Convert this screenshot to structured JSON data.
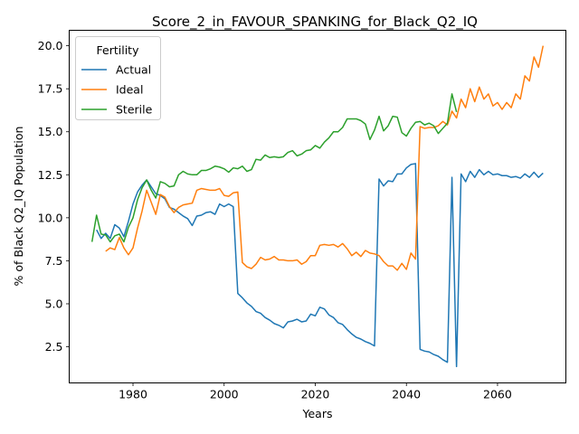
{
  "chart_data": {
    "type": "line",
    "title": "Score_2_in_FAVOUR_SPANKING_for_Black_Q2_IQ",
    "xlabel": "Years",
    "ylabel": "% of Black Q2_IQ Population",
    "xlim": [
      1966,
      2075
    ],
    "ylim": [
      0.4,
      20.9
    ],
    "xticks": [
      1980,
      2000,
      2020,
      2040,
      2060
    ],
    "yticks": [
      2.5,
      5.0,
      7.5,
      10.0,
      12.5,
      15.0,
      17.5,
      20.0
    ],
    "xtick_labels": [
      "1980",
      "2000",
      "2020",
      "2040",
      "2060"
    ],
    "ytick_labels": [
      "2.5",
      "5.0",
      "7.5",
      "10.0",
      "12.5",
      "15.0",
      "17.5",
      "20.0"
    ],
    "grid": false,
    "legend": {
      "title": "Fertility",
      "position": "upper-left"
    },
    "series": [
      {
        "name": "Actual",
        "color": "#1f77b4",
        "points": [
          [
            1972,
            9.3
          ],
          [
            1973,
            8.8
          ],
          [
            1974,
            9.1
          ],
          [
            1975,
            8.8
          ],
          [
            1976,
            9.6
          ],
          [
            1977,
            9.4
          ],
          [
            1978,
            8.9
          ],
          [
            1979,
            9.8
          ],
          [
            1980,
            10.8
          ],
          [
            1981,
            11.5
          ],
          [
            1982,
            11.9
          ],
          [
            1983,
            12.2
          ],
          [
            1984,
            11.8
          ],
          [
            1985,
            11.4
          ],
          [
            1986,
            11.3
          ],
          [
            1987,
            11.1
          ],
          [
            1988,
            10.6
          ],
          [
            1989,
            10.5
          ],
          [
            1990,
            10.3
          ],
          [
            1991,
            10.1
          ],
          [
            1992,
            9.95
          ],
          [
            1993,
            9.55
          ],
          [
            1994,
            10.1
          ],
          [
            1995,
            10.15
          ],
          [
            1996,
            10.3
          ],
          [
            1997,
            10.35
          ],
          [
            1998,
            10.2
          ],
          [
            1999,
            10.8
          ],
          [
            2000,
            10.65
          ],
          [
            2001,
            10.8
          ],
          [
            2002,
            10.65
          ],
          [
            2003,
            5.6
          ],
          [
            2004,
            5.35
          ],
          [
            2005,
            5.05
          ],
          [
            2006,
            4.85
          ],
          [
            2007,
            4.55
          ],
          [
            2008,
            4.45
          ],
          [
            2009,
            4.2
          ],
          [
            2010,
            4.05
          ],
          [
            2011,
            3.85
          ],
          [
            2012,
            3.75
          ],
          [
            2013,
            3.6
          ],
          [
            2014,
            3.95
          ],
          [
            2015,
            4.0
          ],
          [
            2016,
            4.1
          ],
          [
            2017,
            3.95
          ],
          [
            2018,
            4.0
          ],
          [
            2019,
            4.4
          ],
          [
            2020,
            4.3
          ],
          [
            2021,
            4.8
          ],
          [
            2022,
            4.7
          ],
          [
            2023,
            4.35
          ],
          [
            2024,
            4.2
          ],
          [
            2025,
            3.9
          ],
          [
            2026,
            3.8
          ],
          [
            2027,
            3.5
          ],
          [
            2028,
            3.25
          ],
          [
            2029,
            3.05
          ],
          [
            2030,
            2.95
          ],
          [
            2031,
            2.8
          ],
          [
            2032,
            2.7
          ],
          [
            2033,
            2.55
          ],
          [
            2034,
            12.25
          ],
          [
            2035,
            11.85
          ],
          [
            2036,
            12.15
          ],
          [
            2037,
            12.1
          ],
          [
            2038,
            12.55
          ],
          [
            2039,
            12.55
          ],
          [
            2040,
            12.9
          ],
          [
            2041,
            13.1
          ],
          [
            2042,
            13.15
          ],
          [
            2043,
            2.35
          ],
          [
            2044,
            2.25
          ],
          [
            2045,
            2.2
          ],
          [
            2046,
            2.05
          ],
          [
            2047,
            1.95
          ],
          [
            2048,
            1.75
          ],
          [
            2049,
            1.6
          ],
          [
            2050,
            12.35
          ],
          [
            2051,
            1.35
          ],
          [
            2052,
            12.55
          ],
          [
            2053,
            12.1
          ],
          [
            2054,
            12.7
          ],
          [
            2055,
            12.35
          ],
          [
            2056,
            12.8
          ],
          [
            2057,
            12.5
          ],
          [
            2058,
            12.7
          ],
          [
            2059,
            12.5
          ],
          [
            2060,
            12.55
          ],
          [
            2061,
            12.45
          ],
          [
            2062,
            12.45
          ],
          [
            2063,
            12.35
          ],
          [
            2064,
            12.4
          ],
          [
            2065,
            12.3
          ],
          [
            2066,
            12.55
          ],
          [
            2067,
            12.35
          ],
          [
            2068,
            12.65
          ],
          [
            2069,
            12.35
          ],
          [
            2070,
            12.6
          ]
        ]
      },
      {
        "name": "Ideal",
        "color": "#ff7f0e",
        "points": [
          [
            1974,
            8.05
          ],
          [
            1975,
            8.25
          ],
          [
            1976,
            8.15
          ],
          [
            1977,
            8.85
          ],
          [
            1978,
            8.25
          ],
          [
            1979,
            7.85
          ],
          [
            1980,
            8.25
          ],
          [
            1981,
            9.4
          ],
          [
            1982,
            10.4
          ],
          [
            1983,
            11.6
          ],
          [
            1984,
            10.9
          ],
          [
            1985,
            10.2
          ],
          [
            1986,
            11.35
          ],
          [
            1987,
            11.2
          ],
          [
            1988,
            10.65
          ],
          [
            1989,
            10.3
          ],
          [
            1990,
            10.6
          ],
          [
            1991,
            10.75
          ],
          [
            1992,
            10.8
          ],
          [
            1993,
            10.85
          ],
          [
            1994,
            11.6
          ],
          [
            1995,
            11.7
          ],
          [
            1996,
            11.65
          ],
          [
            1997,
            11.6
          ],
          [
            1998,
            11.6
          ],
          [
            1999,
            11.7
          ],
          [
            2000,
            11.3
          ],
          [
            2001,
            11.25
          ],
          [
            2002,
            11.45
          ],
          [
            2003,
            11.5
          ],
          [
            2004,
            7.4
          ],
          [
            2005,
            7.15
          ],
          [
            2006,
            7.05
          ],
          [
            2007,
            7.3
          ],
          [
            2008,
            7.7
          ],
          [
            2009,
            7.55
          ],
          [
            2010,
            7.6
          ],
          [
            2011,
            7.75
          ],
          [
            2012,
            7.55
          ],
          [
            2013,
            7.55
          ],
          [
            2014,
            7.5
          ],
          [
            2015,
            7.5
          ],
          [
            2016,
            7.55
          ],
          [
            2017,
            7.3
          ],
          [
            2018,
            7.45
          ],
          [
            2019,
            7.8
          ],
          [
            2020,
            7.8
          ],
          [
            2021,
            8.4
          ],
          [
            2022,
            8.45
          ],
          [
            2023,
            8.4
          ],
          [
            2024,
            8.45
          ],
          [
            2025,
            8.3
          ],
          [
            2026,
            8.5
          ],
          [
            2027,
            8.2
          ],
          [
            2028,
            7.8
          ],
          [
            2029,
            8.0
          ],
          [
            2030,
            7.75
          ],
          [
            2031,
            8.1
          ],
          [
            2032,
            7.95
          ],
          [
            2033,
            7.9
          ],
          [
            2034,
            7.8
          ],
          [
            2035,
            7.45
          ],
          [
            2036,
            7.2
          ],
          [
            2037,
            7.2
          ],
          [
            2038,
            6.95
          ],
          [
            2039,
            7.35
          ],
          [
            2040,
            7.0
          ],
          [
            2041,
            7.95
          ],
          [
            2042,
            7.6
          ],
          [
            2043,
            15.3
          ],
          [
            2044,
            15.2
          ],
          [
            2045,
            15.25
          ],
          [
            2046,
            15.25
          ],
          [
            2047,
            15.35
          ],
          [
            2048,
            15.6
          ],
          [
            2049,
            15.4
          ],
          [
            2050,
            16.2
          ],
          [
            2051,
            15.8
          ],
          [
            2052,
            16.9
          ],
          [
            2053,
            16.4
          ],
          [
            2054,
            17.5
          ],
          [
            2055,
            16.75
          ],
          [
            2056,
            17.6
          ],
          [
            2057,
            16.9
          ],
          [
            2058,
            17.2
          ],
          [
            2059,
            16.5
          ],
          [
            2060,
            16.7
          ],
          [
            2061,
            16.3
          ],
          [
            2062,
            16.7
          ],
          [
            2063,
            16.4
          ],
          [
            2064,
            17.2
          ],
          [
            2065,
            16.9
          ],
          [
            2066,
            18.25
          ],
          [
            2067,
            17.95
          ],
          [
            2068,
            19.35
          ],
          [
            2069,
            18.75
          ],
          [
            2070,
            20.0
          ]
        ]
      },
      {
        "name": "Sterile",
        "color": "#2ca02c",
        "points": [
          [
            1971,
            8.6
          ],
          [
            1972,
            10.15
          ],
          [
            1973,
            9.05
          ],
          [
            1974,
            9.0
          ],
          [
            1975,
            8.6
          ],
          [
            1976,
            8.95
          ],
          [
            1977,
            9.05
          ],
          [
            1978,
            8.6
          ],
          [
            1979,
            9.45
          ],
          [
            1980,
            10.0
          ],
          [
            1981,
            11.05
          ],
          [
            1982,
            11.75
          ],
          [
            1983,
            12.2
          ],
          [
            1984,
            11.6
          ],
          [
            1985,
            11.15
          ],
          [
            1986,
            12.1
          ],
          [
            1987,
            12.0
          ],
          [
            1988,
            11.8
          ],
          [
            1989,
            11.85
          ],
          [
            1990,
            12.5
          ],
          [
            1991,
            12.7
          ],
          [
            1992,
            12.55
          ],
          [
            1993,
            12.5
          ],
          [
            1994,
            12.5
          ],
          [
            1995,
            12.75
          ],
          [
            1996,
            12.75
          ],
          [
            1997,
            12.85
          ],
          [
            1998,
            13.0
          ],
          [
            1999,
            12.95
          ],
          [
            2000,
            12.85
          ],
          [
            2001,
            12.65
          ],
          [
            2002,
            12.9
          ],
          [
            2003,
            12.85
          ],
          [
            2004,
            13.0
          ],
          [
            2005,
            12.7
          ],
          [
            2006,
            12.8
          ],
          [
            2007,
            13.4
          ],
          [
            2008,
            13.35
          ],
          [
            2009,
            13.65
          ],
          [
            2010,
            13.5
          ],
          [
            2011,
            13.55
          ],
          [
            2012,
            13.5
          ],
          [
            2013,
            13.55
          ],
          [
            2014,
            13.8
          ],
          [
            2015,
            13.9
          ],
          [
            2016,
            13.6
          ],
          [
            2017,
            13.7
          ],
          [
            2018,
            13.9
          ],
          [
            2019,
            13.95
          ],
          [
            2020,
            14.2
          ],
          [
            2021,
            14.05
          ],
          [
            2022,
            14.4
          ],
          [
            2023,
            14.65
          ],
          [
            2024,
            15.0
          ],
          [
            2025,
            15.0
          ],
          [
            2026,
            15.25
          ],
          [
            2027,
            15.75
          ],
          [
            2028,
            15.75
          ],
          [
            2029,
            15.75
          ],
          [
            2030,
            15.65
          ],
          [
            2031,
            15.45
          ],
          [
            2032,
            14.55
          ],
          [
            2033,
            15.1
          ],
          [
            2034,
            15.9
          ],
          [
            2035,
            15.05
          ],
          [
            2036,
            15.35
          ],
          [
            2037,
            15.9
          ],
          [
            2038,
            15.85
          ],
          [
            2039,
            14.95
          ],
          [
            2040,
            14.75
          ],
          [
            2041,
            15.2
          ],
          [
            2042,
            15.55
          ],
          [
            2043,
            15.6
          ],
          [
            2044,
            15.4
          ],
          [
            2045,
            15.5
          ],
          [
            2046,
            15.35
          ],
          [
            2047,
            14.9
          ],
          [
            2048,
            15.2
          ],
          [
            2049,
            15.5
          ],
          [
            2050,
            17.2
          ],
          [
            2051,
            16.15
          ]
        ]
      }
    ]
  }
}
